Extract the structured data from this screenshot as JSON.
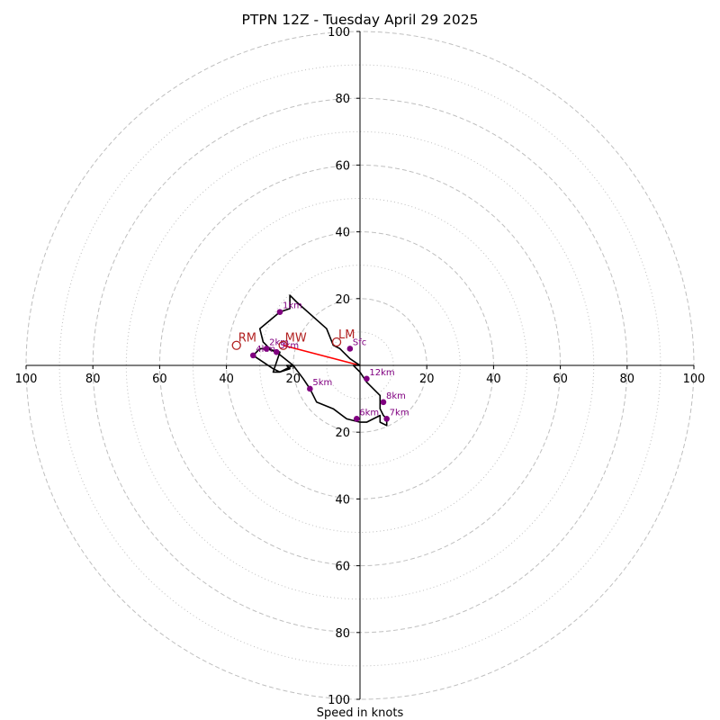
{
  "chart_data": {
    "type": "hodograph",
    "title": "PTPN 12Z - Tuesday April 29 2025",
    "xlabel": "Speed in knots",
    "range": [
      -100,
      100
    ],
    "rings_dashed": [
      20,
      40,
      60,
      80,
      100
    ],
    "rings_dotted": [
      10,
      30,
      50,
      70,
      90
    ],
    "ticks": {
      "x": [
        {
          "v": -100,
          "label": "100"
        },
        {
          "v": -80,
          "label": "80"
        },
        {
          "v": -60,
          "label": "60"
        },
        {
          "v": -40,
          "label": "40"
        },
        {
          "v": -20,
          "label": "20"
        },
        {
          "v": 20,
          "label": "20"
        },
        {
          "v": 40,
          "label": "40"
        },
        {
          "v": 60,
          "label": "60"
        },
        {
          "v": 80,
          "label": "80"
        },
        {
          "v": 100,
          "label": "100"
        }
      ],
      "y": [
        {
          "v": 100,
          "label": "100"
        },
        {
          "v": 80,
          "label": "80"
        },
        {
          "v": 60,
          "label": "60"
        },
        {
          "v": 40,
          "label": "40"
        },
        {
          "v": 20,
          "label": "20"
        },
        {
          "v": -20,
          "label": "20"
        },
        {
          "v": -40,
          "label": "40"
        },
        {
          "v": -60,
          "label": "60"
        },
        {
          "v": -80,
          "label": "80"
        },
        {
          "v": -100,
          "label": "100"
        }
      ]
    },
    "trace": [
      [
        0,
        0
      ],
      [
        -3,
        2
      ],
      [
        -6,
        5
      ],
      [
        -8,
        6
      ],
      [
        -10,
        11
      ],
      [
        -19,
        19
      ],
      [
        -21,
        21
      ],
      [
        -21,
        17
      ],
      [
        -24,
        16
      ],
      [
        -30,
        11
      ],
      [
        -29,
        7
      ],
      [
        -27,
        5
      ],
      [
        -30,
        5
      ],
      [
        -31,
        4
      ],
      [
        -32,
        3
      ],
      [
        -29,
        1
      ],
      [
        -26,
        -1
      ],
      [
        -24,
        -2
      ],
      [
        -20,
        0
      ],
      [
        -22,
        0
      ],
      [
        -21,
        -1
      ],
      [
        -24,
        -2
      ],
      [
        -26,
        -2
      ],
      [
        -24,
        4
      ],
      [
        -28,
        5
      ],
      [
        -25,
        4
      ],
      [
        -20,
        0
      ],
      [
        -17,
        -4
      ],
      [
        -15,
        -7
      ],
      [
        -13,
        -11
      ],
      [
        -8,
        -13
      ],
      [
        -4,
        -16
      ],
      [
        0,
        -17
      ],
      [
        2,
        -17
      ],
      [
        4,
        -16
      ],
      [
        6,
        -15
      ],
      [
        6,
        -17
      ],
      [
        8,
        -18
      ],
      [
        8,
        -16
      ],
      [
        7,
        -15
      ],
      [
        6,
        -13
      ],
      [
        6,
        -9
      ],
      [
        2,
        -5
      ],
      [
        0,
        -2
      ],
      [
        -2,
        0
      ],
      [
        0,
        0
      ]
    ],
    "height_markers": [
      {
        "label": "Sfc",
        "u": -3,
        "v": 5
      },
      {
        "label": "1km",
        "u": -24,
        "v": 16
      },
      {
        "label": "2km",
        "u": -28,
        "v": 5
      },
      {
        "label": "3km",
        "u": -25,
        "v": 4
      },
      {
        "label": "4km",
        "u": -32,
        "v": 3
      },
      {
        "label": "5km",
        "u": -15,
        "v": -7
      },
      {
        "label": "6km",
        "u": -1,
        "v": -16
      },
      {
        "label": "7km",
        "u": 8,
        "v": -16
      },
      {
        "label": "8km",
        "u": 7,
        "v": -11
      },
      {
        "label": "12km",
        "u": 2,
        "v": -4
      }
    ],
    "storm_motions": [
      {
        "label": "RM",
        "u": -37,
        "v": 6
      },
      {
        "label": "LM",
        "u": -7,
        "v": 7
      },
      {
        "label": "MW",
        "u": -23,
        "v": 6
      }
    ],
    "shear_vector": {
      "from": [
        0,
        0
      ],
      "to": [
        -23,
        6
      ]
    },
    "colors": {
      "rings": "#bfbfbf",
      "trace": "#000000",
      "markers": "#800080",
      "storm_motion": "#b22222",
      "shear": "#ff0000"
    }
  }
}
